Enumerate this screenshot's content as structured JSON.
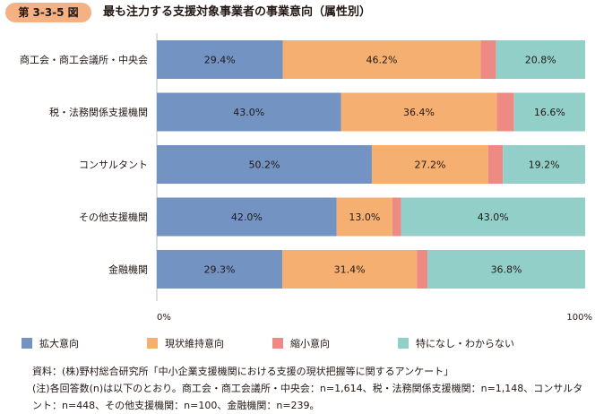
{
  "figure": {
    "label": "第 3-3-5 図",
    "title": "最も注力する支援対象事業者の事業意向（属性別）"
  },
  "chart_data": {
    "type": "bar",
    "orientation": "horizontal",
    "stacked": true,
    "percent": true,
    "categories": [
      "商工会・商工会議所・中央会",
      "税・法務関係支援機関",
      "コンサルタント",
      "その他支援機関",
      "金融機関"
    ],
    "series": [
      {
        "name": "拡大意向",
        "color": "#7394c3",
        "values": [
          29.4,
          43.0,
          50.2,
          42.0,
          29.3
        ],
        "labels": [
          "29.4%",
          "43.0%",
          "50.2%",
          "42.0%",
          "29.3%"
        ]
      },
      {
        "name": "現状維持意向",
        "color": "#f5b071",
        "values": [
          46.2,
          36.4,
          27.2,
          13.0,
          31.4
        ],
        "labels": [
          "46.2%",
          "36.4%",
          "27.2%",
          "13.0%",
          "31.4%"
        ]
      },
      {
        "name": "縮小意向",
        "color": "#ee8a84",
        "values": [
          3.6,
          4.0,
          3.4,
          2.0,
          2.5
        ],
        "labels": [
          "",
          "",
          "",
          "",
          ""
        ]
      },
      {
        "name": "特になし・わからない",
        "color": "#92cfc9",
        "values": [
          20.8,
          16.6,
          19.2,
          43.0,
          36.8
        ],
        "labels": [
          "20.8%",
          "16.6%",
          "19.2%",
          "43.0%",
          "36.8%"
        ]
      }
    ],
    "xlim": [
      0,
      100
    ],
    "x_ticks": [
      "0%",
      "100%"
    ],
    "grid": false,
    "legend_position": "bottom"
  },
  "notes": {
    "source": "資料：(株)野村総合研究所「中小企業支援機関における支援の現状把握等に関するアンケート」",
    "note_line1": "(注)各回答数(n)は以下のとおり。商工会・商工会議所・中央会：n=1,614、税・法務関係支援機関：n=1,148、コンサルタ",
    "note_line2": "ント：n=448、その他支援機関：n=100、金融機関：n=239。"
  }
}
